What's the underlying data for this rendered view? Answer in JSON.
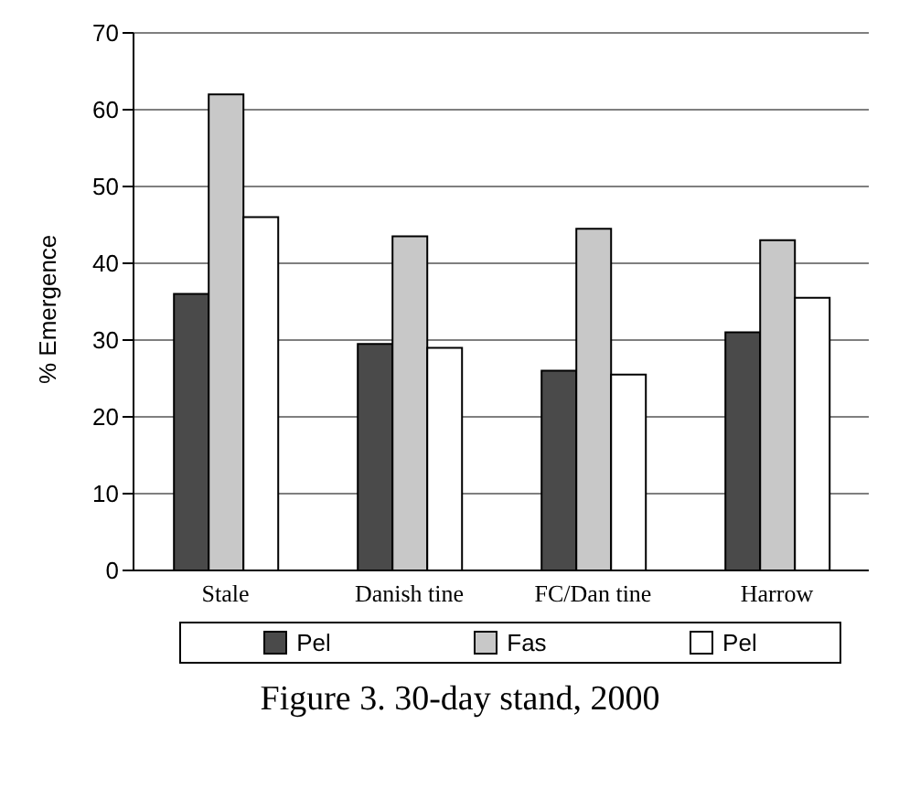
{
  "chart_data": {
    "type": "bar",
    "title": "Figure 3.  30-day stand, 2000",
    "ylabel": "% Emergence",
    "categories": [
      "Stale",
      "Danish tine",
      "FC/Dan tine",
      "Harrow"
    ],
    "series": [
      {
        "name": "Pel",
        "color": "#4a4a4a",
        "values": [
          36,
          29.5,
          26,
          31
        ]
      },
      {
        "name": "Fas",
        "color": "#c8c8c8",
        "values": [
          62,
          43.5,
          44.5,
          43
        ]
      },
      {
        "name": "Pel",
        "color": "#ffffff",
        "values": [
          46,
          29,
          25.5,
          35.5
        ]
      }
    ],
    "ylim": [
      0,
      70
    ],
    "yticks": [
      0,
      10,
      20,
      30,
      40,
      50,
      60,
      70
    ],
    "grid": "y",
    "legend": "bottom"
  }
}
